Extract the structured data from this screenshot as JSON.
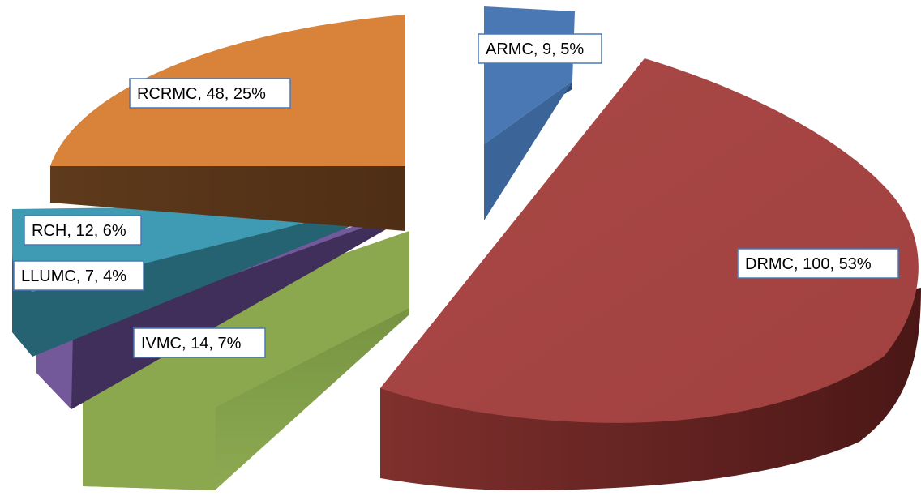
{
  "chart_data": {
    "type": "pie",
    "title": "",
    "style": "3d-exploded",
    "label_format": "{category}, {value}, {percent}",
    "slices": [
      {
        "category": "ARMC",
        "value": 9,
        "percent": "5%",
        "label": "ARMC, 9, 5%",
        "color": "#4A78B5",
        "side_color": "#2F4F7E"
      },
      {
        "category": "DRMC",
        "value": 100,
        "percent": "53%",
        "label": "DRMC, 100, 53%",
        "color": "#A84643",
        "side_color": "#6F2624"
      },
      {
        "category": "IVMC",
        "value": 14,
        "percent": "7%",
        "label": "IVMC, 14, 7%",
        "color": "#8BA84E",
        "side_color": "#5A7231"
      },
      {
        "category": "LLUMC",
        "value": 7,
        "percent": "4%",
        "label": "LLUMC, 7, 4%",
        "color": "#73599A",
        "side_color": "#3F2F5A"
      },
      {
        "category": "RCH",
        "value": 12,
        "percent": "6%",
        "label": "RCH, 12, 6%",
        "color": "#3F9BB3",
        "side_color": "#256272"
      },
      {
        "category": "RCRMC",
        "value": 48,
        "percent": "25%",
        "label": "RCRMC, 48, 25%",
        "color": "#D8823A",
        "side_color": "#5A3519"
      }
    ]
  }
}
